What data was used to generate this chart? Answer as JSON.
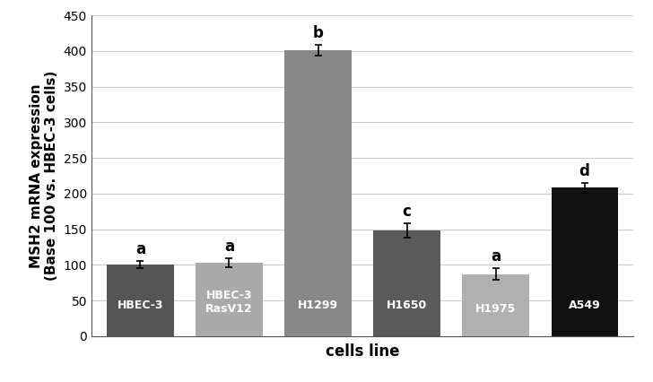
{
  "categories": [
    "HBEC-3",
    "HBEC-3\nRasV12",
    "H1299",
    "H1650",
    "H1975",
    "A549"
  ],
  "bar_labels": [
    "HBEC-3",
    "HBEC-3\nRasV12",
    "H1299",
    "H1650",
    "H1975",
    "A549"
  ],
  "values": [
    100,
    103,
    401,
    148,
    87,
    208
  ],
  "errors": [
    5,
    6,
    8,
    10,
    8,
    7
  ],
  "letters": [
    "a",
    "a",
    "b",
    "c",
    "a",
    "d"
  ],
  "bar_colors": [
    "#555555",
    "#aaaaaa",
    "#888888",
    "#5a5a5a",
    "#b0b0b0",
    "#111111"
  ],
  "ylabel": "MSH2 mRNA expression\n(Base 100 vs. HBEC-3 cells)",
  "xlabel": "cells line",
  "ylim": [
    0,
    450
  ],
  "yticks": [
    0,
    50,
    100,
    150,
    200,
    250,
    300,
    350,
    400,
    450
  ],
  "ylabel_fontsize": 11,
  "xlabel_fontsize": 12,
  "tick_fontsize": 10,
  "letter_fontsize": 12,
  "bar_label_fontsize": 9,
  "bar_width": 0.75,
  "background_color": "#ffffff",
  "grid_color": "#cccccc"
}
